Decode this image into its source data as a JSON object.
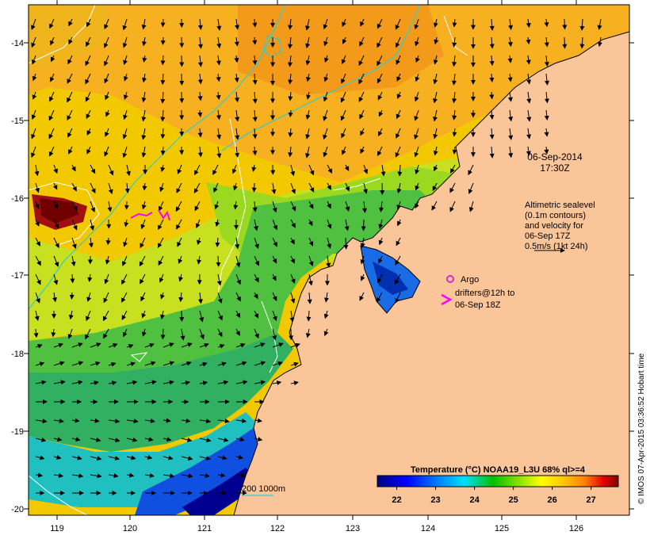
{
  "map": {
    "lon_ticks": [
      "119",
      "120",
      "121",
      "122",
      "123",
      "124",
      "125",
      "126"
    ],
    "lat_ticks": [
      "-14",
      "-15",
      "-16",
      "-17",
      "-18",
      "-19",
      "-20"
    ],
    "timestamp_date": "06-Sep-2014",
    "timestamp_time": "17:30Z",
    "altimetry_note": [
      "Altimetric sealevel",
      "(0.1m contours)",
      "and velocity for",
      "06-Sep 17Z",
      "0.5m/s (1kt 24h)"
    ],
    "argo_label": "Argo",
    "drifter_label_1": "drifters@12h to",
    "drifter_label_2": "06-Sep 18Z",
    "isobath_label": "200  1000m",
    "colorbar": {
      "title": "Temperature (°C) NOAA19_L3U 68% ql>=4",
      "ticks": [
        "22",
        "23",
        "24",
        "25",
        "26",
        "27"
      ],
      "range": [
        21.5,
        27.7
      ]
    },
    "credit": "© IMOS 07-Apr-2015 03:36:52 Hobart time",
    "colors": {
      "land": "#fbc59a",
      "isobath": "#33cccc",
      "argo": "#cc33cc",
      "drifter": "#ff00ff"
    }
  }
}
